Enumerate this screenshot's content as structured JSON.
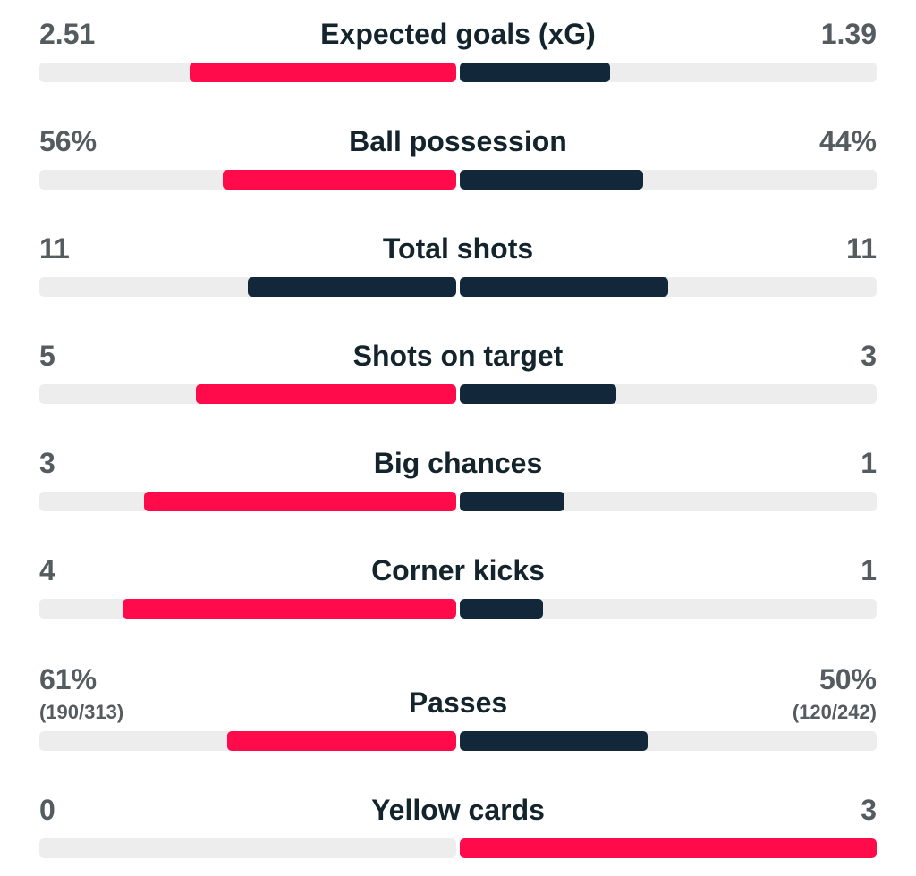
{
  "colors": {
    "home": "#ff0a4b",
    "away": "#12283a",
    "track": "#ededed",
    "value_text": "#555c60",
    "label_text": "#13242d"
  },
  "stats": [
    {
      "label": "Expected goals (xG)",
      "home": "2.51",
      "away": "1.39",
      "home_fill": 0.64,
      "away_fill": 0.36,
      "home_color": "home",
      "away_color": "away"
    },
    {
      "label": "Ball possession",
      "home": "56%",
      "away": "44%",
      "home_fill": 0.56,
      "away_fill": 0.44,
      "home_color": "home",
      "away_color": "away"
    },
    {
      "label": "Total shots",
      "home": "11",
      "away": "11",
      "home_fill": 0.5,
      "away_fill": 0.5,
      "home_color": "away",
      "away_color": "away"
    },
    {
      "label": "Shots on target",
      "home": "5",
      "away": "3",
      "home_fill": 0.625,
      "away_fill": 0.375,
      "home_color": "home",
      "away_color": "away"
    },
    {
      "label": "Big chances",
      "home": "3",
      "away": "1",
      "home_fill": 0.75,
      "away_fill": 0.25,
      "home_color": "home",
      "away_color": "away"
    },
    {
      "label": "Corner kicks",
      "home": "4",
      "away": "1",
      "home_fill": 0.8,
      "away_fill": 0.2,
      "home_color": "home",
      "away_color": "away"
    },
    {
      "label": "Passes",
      "home": "61%",
      "away": "50%",
      "home_sub": "(190/313)",
      "away_sub": "(120/242)",
      "home_fill": 0.55,
      "away_fill": 0.45,
      "home_color": "home",
      "away_color": "away"
    },
    {
      "label": "Yellow cards",
      "home": "0",
      "away": "3",
      "home_fill": 0.0,
      "away_fill": 1.0,
      "home_color": "home",
      "away_color": "home"
    }
  ]
}
